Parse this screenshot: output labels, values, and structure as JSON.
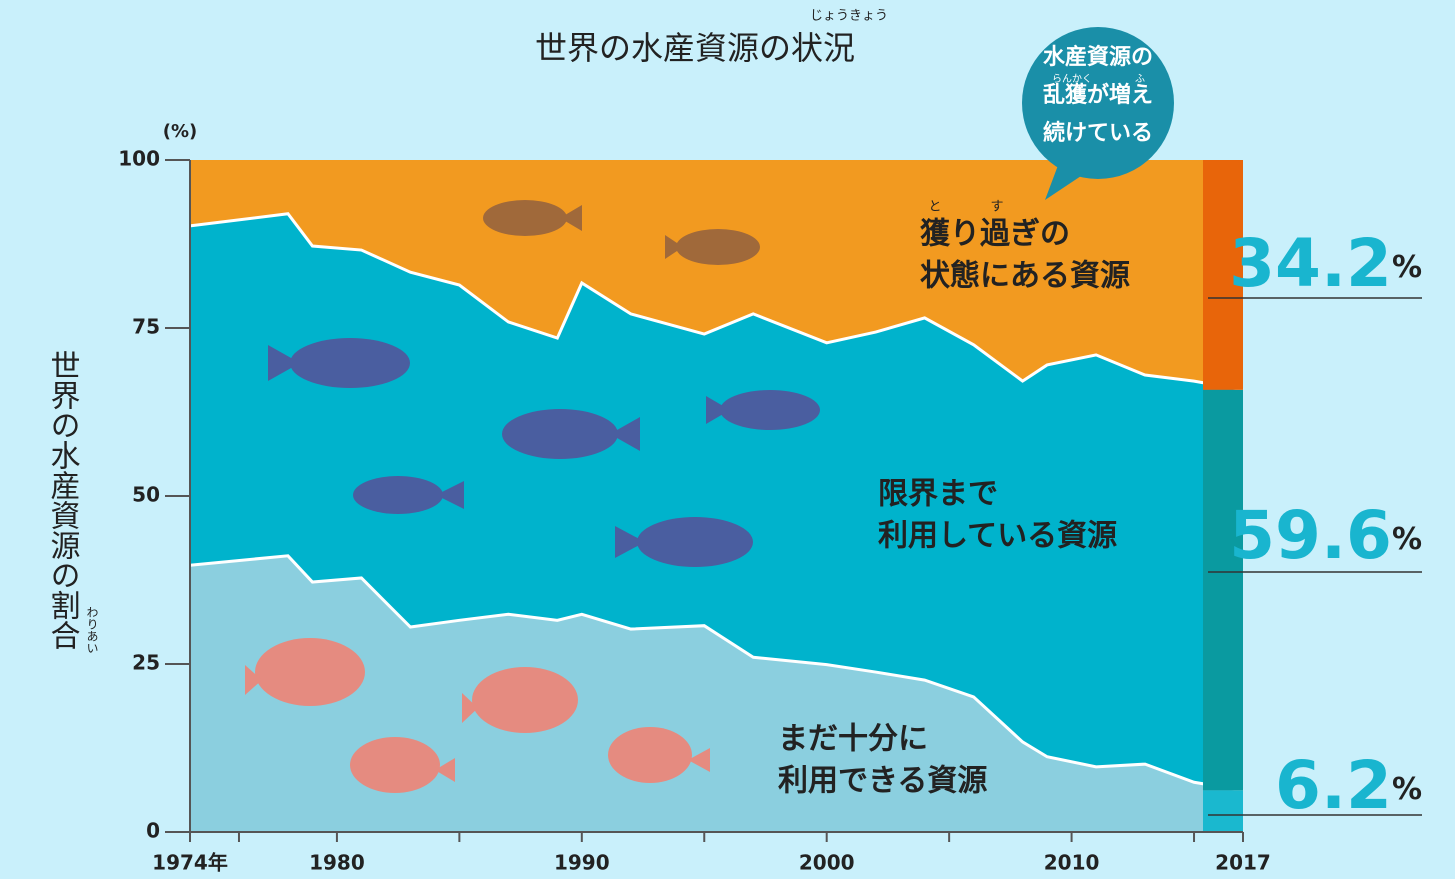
{
  "chart_data": {
    "type": "stacked_area",
    "title": "世界の水産資源の状況",
    "title_ruby": "じょうきょう",
    "y_unit": "(%)",
    "y_label": "世界の水産資源の割合",
    "y_label_ruby": "わりあい",
    "callout": [
      "水産資源の",
      "乱獲が増え",
      "続けている"
    ],
    "callout_ruby": [
      "らんかく",
      "ふ"
    ],
    "x": [
      1974,
      1978,
      1979,
      1981,
      1983,
      1985,
      1987,
      1989,
      1990,
      1992,
      1995,
      1997,
      2000,
      2002,
      2004,
      2006,
      2008,
      2009,
      2011,
      2013,
      2015,
      2017
    ],
    "xlim": [
      1974,
      2017
    ],
    "xticks": [
      {
        "value": 1974,
        "label": "1974年"
      },
      1980,
      1990,
      2000,
      2010,
      2017
    ],
    "xminor_ticks": [
      1976,
      1985,
      1995,
      2005,
      2015
    ],
    "ylim": [
      0,
      100
    ],
    "yticks": [
      0,
      25,
      50,
      75,
      100
    ],
    "series": [
      {
        "name": [
          "まだ十分に",
          "利用できる資源"
        ],
        "color": "#8bcfdf",
        "highlight_color": "#1ab8cf",
        "values": [
          39.7,
          41.1,
          37.2,
          37.8,
          30.5,
          31.5,
          32.4,
          31.5,
          32.4,
          30.2,
          30.7,
          26.0,
          24.9,
          23.8,
          22.6,
          20.1,
          13.4,
          11.2,
          9.7,
          10.1,
          7.4,
          6.2
        ],
        "value_labels": [
          null,
          null,
          null,
          null,
          null,
          null,
          null,
          null,
          null,
          null,
          null,
          null,
          null,
          null,
          null,
          null,
          null,
          null,
          null,
          null,
          null,
          "6.2%"
        ]
      },
      {
        "name": [
          "限界まで",
          "利用している資源"
        ],
        "color": "#00b3cc",
        "highlight_color": "#0a9aa0",
        "values": [
          50.5,
          50.9,
          50.0,
          48.8,
          52.8,
          49.9,
          43.5,
          42.0,
          49.3,
          46.9,
          43.4,
          51.1,
          47.9,
          50.6,
          53.9,
          52.4,
          53.7,
          58.3,
          61.3,
          57.9,
          59.7,
          59.6
        ],
        "value_labels": [
          null,
          null,
          null,
          null,
          null,
          null,
          null,
          null,
          null,
          null,
          null,
          null,
          null,
          null,
          null,
          null,
          null,
          null,
          null,
          null,
          null,
          "59.6%"
        ]
      },
      {
        "name": [
          "獲り過ぎの",
          "状態にある資源"
        ],
        "ruby": [
          "と",
          "す"
        ],
        "color": "#f29a20",
        "highlight_color": "#e8650a",
        "values": [
          9.8,
          8.0,
          12.8,
          13.4,
          16.7,
          18.6,
          24.1,
          26.5,
          18.3,
          22.9,
          25.9,
          22.9,
          27.2,
          25.6,
          23.5,
          27.5,
          32.9,
          30.5,
          29.0,
          32.0,
          32.9,
          34.2
        ],
        "value_labels": [
          null,
          null,
          null,
          null,
          null,
          null,
          null,
          null,
          null,
          null,
          null,
          null,
          null,
          null,
          null,
          null,
          null,
          null,
          null,
          null,
          null,
          "34.2%"
        ]
      }
    ]
  }
}
